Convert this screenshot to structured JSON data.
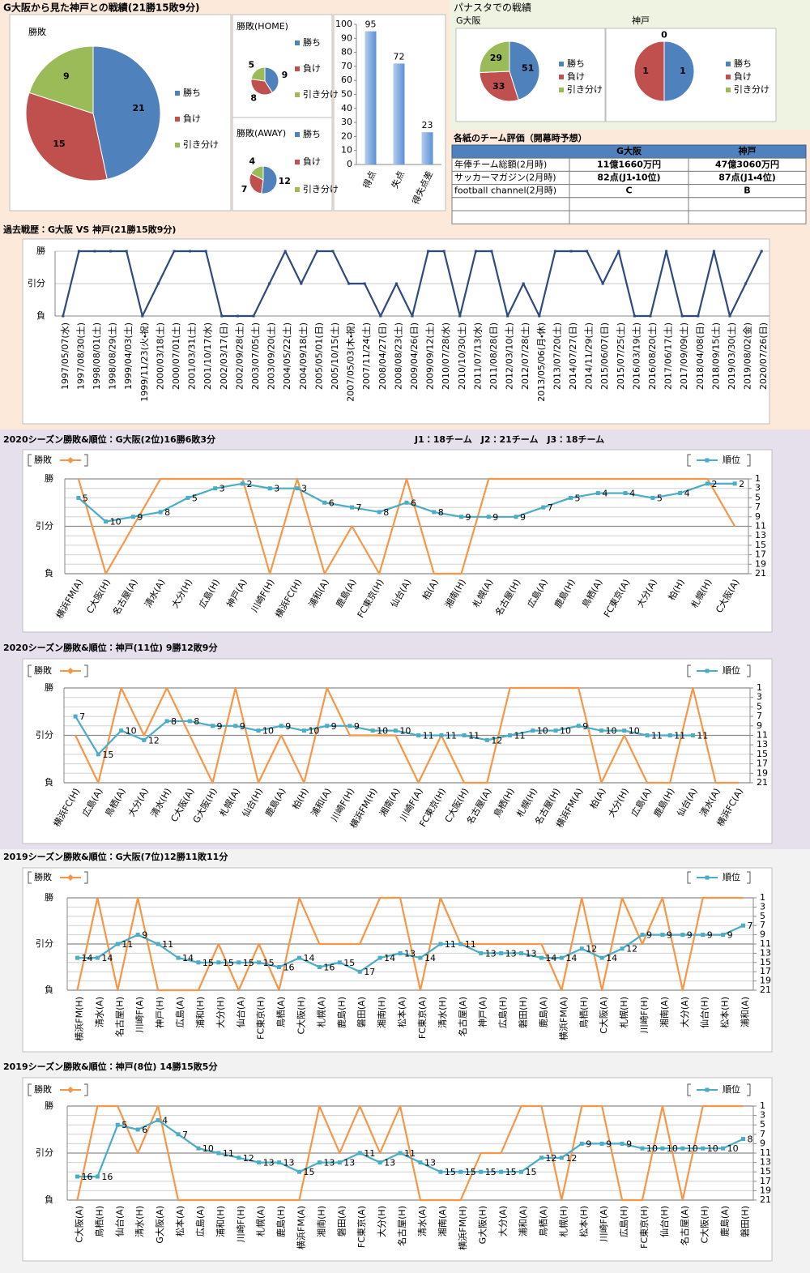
{
  "headers": {
    "summary": "G大阪から見た神戸との戦績(21勝15敗9分)",
    "stadium": "パナスタでの戦績"
  },
  "table": {
    "title": "各紙のチーム評価（開幕時予想）",
    "header": [
      "G大阪",
      "神戸"
    ],
    "rows": [
      {
        "label": "年俸チーム総額(2月時)",
        "cells": [
          "11億1660万円",
          "47億3060万円"
        ]
      },
      {
        "label": "サッカーマガジン(2月時)",
        "cells": [
          "82点(J1・10位)",
          "87点(J1・4位)"
        ]
      },
      {
        "label": "football channel(2月時)",
        "cells": [
          "C",
          "B"
        ]
      }
    ]
  },
  "chart_data": [
    {
      "type": "pie",
      "title": "勝敗",
      "categories": [
        "勝ち",
        "負け",
        "引き分け"
      ],
      "values": [
        21,
        15,
        9
      ],
      "colors": [
        "#4f81bd",
        "#c0504d",
        "#9bbb59"
      ]
    },
    {
      "type": "pie",
      "title": "勝敗(HOME)",
      "categories": [
        "勝ち",
        "負け",
        "引き分け"
      ],
      "values": [
        9,
        8,
        5
      ],
      "colors": [
        "#4f81bd",
        "#c0504d",
        "#9bbb59"
      ]
    },
    {
      "type": "pie",
      "title": "勝敗(AWAY)",
      "categories": [
        "勝ち",
        "負け",
        "引き分け"
      ],
      "values": [
        12,
        7,
        4
      ],
      "colors": [
        "#4f81bd",
        "#c0504d",
        "#9bbb59"
      ]
    },
    {
      "type": "bar",
      "categories": [
        "得点",
        "失点",
        "得失点差"
      ],
      "values": [
        95,
        72,
        23
      ],
      "color": "#5b8fd6",
      "ylim": [
        0,
        100
      ],
      "yticks": [
        0,
        10,
        20,
        30,
        40,
        50,
        60,
        70,
        80,
        90,
        100
      ]
    },
    {
      "type": "pie",
      "title": "G大阪",
      "categories": [
        "勝ち",
        "負け",
        "引き分け"
      ],
      "values": [
        51,
        33,
        29
      ],
      "colors": [
        "#4f81bd",
        "#c0504d",
        "#9bbb59"
      ]
    },
    {
      "type": "pie",
      "title": "神戸",
      "categories": [
        "勝ち",
        "負け",
        "引き分け"
      ],
      "values": [
        1,
        1,
        0
      ],
      "colors": [
        "#4f81bd",
        "#c0504d",
        "#9bbb59"
      ]
    },
    {
      "type": "line",
      "title": "過去戦歴：G大阪 VS 神戸(21勝15敗9分)",
      "categories": [
        "1997/05/07(水)",
        "1997/08/30(土)",
        "1998/08/01(土)",
        "1998/08/29(土)",
        "1999/04/03(土)",
        "1999/11/23(火・祝)",
        "2000/03/18(土)",
        "2000/07/01(土)",
        "2001/03/31(土)",
        "2001/10/17(水)",
        "2002/03/17(日)",
        "2002/09/28(土)",
        "2003/07/05(土)",
        "2003/09/20(土)",
        "2004/05/22(土)",
        "2004/09/18(土)",
        "2005/05/01(日)",
        "2005/10/15(土)",
        "2007/05/03(木・祝)",
        "2007/11/24(土)",
        "2008/04/27(日)",
        "2008/08/23(土)",
        "2009/04/26(日)",
        "2009/09/12(土)",
        "2010/07/28(水)",
        "2010/10/30(土)",
        "2011/07/13(水)",
        "2011/08/28(日)",
        "2012/03/10(土)",
        "2012/07/28(土)",
        "2013/05/06(月・休)",
        "2013/07/20(土)",
        "2014/07/27(日)",
        "2014/11/29(土)",
        "2015/06/07(日)",
        "2015/07/25(土)",
        "2016/03/19(土)",
        "2016/08/20(土)",
        "2017/06/17(土)",
        "2017/09/09(土)",
        "2018/04/08(日)",
        "2018/09/15(土)",
        "2019/03/30(土)",
        "2019/08/02(金)",
        "2020/07/26(日)"
      ],
      "values": [
        0,
        2,
        2,
        2,
        2,
        0,
        1,
        2,
        2,
        2,
        0,
        0,
        0,
        1,
        2,
        1,
        2,
        2,
        1,
        1,
        0,
        1,
        0,
        2,
        2,
        0,
        2,
        2,
        0,
        1,
        0,
        2,
        2,
        2,
        1,
        2,
        0,
        0,
        2,
        0,
        0,
        2,
        0,
        1,
        2
      ],
      "color": "#2f4a7d",
      "ylim": [
        0,
        2
      ],
      "yticks": [
        {
          "value": 0,
          "label": "負"
        },
        {
          "value": 1,
          "label": "引分"
        },
        {
          "value": 2,
          "label": "勝"
        }
      ],
      "grid": true
    },
    {
      "type": "line",
      "title": "2020シーズン勝敗&順位：G大阪(2位)16勝6敗3分",
      "annotation": "J1：18チーム　J2：21チーム　J3：18チーム",
      "categories": [
        "横浜FM(A)",
        "C大阪(H)",
        "名古屋(A)",
        "清水(A)",
        "大分(H)",
        "広島(H)",
        "神戸(A)",
        "川崎F(H)",
        "横浜FC(H)",
        "浦和(A)",
        "鹿島(A)",
        "FC東京(H)",
        "仙台(A)",
        "柏(A)",
        "湘南(H)",
        "札幌(A)",
        "名古屋(H)",
        "広島(A)",
        "鹿島(H)",
        "鳥栖(A)",
        "FC東京(A)",
        "大分(A)",
        "柏(H)",
        "札幌(H)",
        "C大阪(A)"
      ],
      "series": [
        {
          "name": "勝敗",
          "color": "#f79646",
          "values": [
            2,
            0,
            1,
            2,
            2,
            2,
            2,
            0,
            2,
            0,
            1,
            0,
            2,
            0,
            0,
            2,
            2,
            2,
            2,
            2,
            2,
            2,
            2,
            2,
            1
          ]
        },
        {
          "name": "順位",
          "color": "#4bacc6",
          "axis": "y2",
          "values": [
            5,
            10,
            9,
            8,
            5,
            3,
            2,
            3,
            3,
            6,
            7,
            8,
            6,
            8,
            9,
            9,
            9,
            7,
            5,
            4,
            4,
            5,
            4,
            2,
            2
          ]
        }
      ],
      "ylim": [
        0,
        2
      ],
      "yticks": [
        {
          "value": 0,
          "label": "負"
        },
        {
          "value": 1,
          "label": "引分"
        },
        {
          "value": 2,
          "label": "勝"
        }
      ],
      "y2lim": [
        21,
        1
      ],
      "y2ticks": [
        1,
        3,
        5,
        7,
        9,
        11,
        13,
        15,
        17,
        19,
        21
      ],
      "grid": true
    },
    {
      "type": "line",
      "title": "2020シーズン勝敗&順位：神戸(11位) 9勝12敗9分",
      "categories": [
        "横浜FC(H)",
        "広島(A)",
        "鳥栖(A)",
        "大分(A)",
        "清水(H)",
        "C大阪(A)",
        "G大阪(H)",
        "札幌(A)",
        "仙台(H)",
        "鹿島(A)",
        "柏(H)",
        "浦和(A)",
        "川崎F(H)",
        "横浜FM(H)",
        "湘南(A)",
        "川崎F(A)",
        "FC東京(H)",
        "C大阪(H)",
        "名古屋(A)",
        "鳥栖(H)",
        "札幌(H)",
        "名古屋(H)",
        "横浜FM(A)",
        "柏(A)",
        "大分(H)",
        "広島(A)",
        "鹿島(H)",
        "仙台(A)",
        "清水(A)",
        "横浜FC(A)"
      ],
      "series": [
        {
          "name": "勝敗",
          "color": "#f79646",
          "values": [
            1,
            0,
            2,
            1,
            2,
            1,
            0,
            2,
            0,
            1,
            0,
            2,
            1,
            1,
            1,
            0,
            1,
            0,
            0,
            2,
            2,
            2,
            2,
            0,
            1,
            0,
            0,
            2,
            0,
            0
          ]
        },
        {
          "name": "順位",
          "color": "#4bacc6",
          "axis": "y2",
          "values": [
            7,
            15,
            10,
            12,
            8,
            8,
            9,
            9,
            10,
            9,
            10,
            9,
            9,
            10,
            10,
            11,
            11,
            11,
            12,
            11,
            10,
            10,
            9,
            10,
            10,
            11,
            11,
            11,
            null,
            null
          ]
        }
      ],
      "ylim": [
        0,
        2
      ],
      "yticks": [
        {
          "value": 0,
          "label": "負"
        },
        {
          "value": 1,
          "label": "引分"
        },
        {
          "value": 2,
          "label": "勝"
        }
      ],
      "y2lim": [
        21,
        1
      ],
      "y2ticks": [
        1,
        3,
        5,
        7,
        9,
        11,
        13,
        15,
        17,
        19,
        21
      ],
      "grid": true
    },
    {
      "type": "line",
      "title": "2019シーズン勝敗&順位：G大阪(7位)12勝11敗11分",
      "categories": [
        "横浜FM(H)",
        "清水(A)",
        "名古屋(H)",
        "川崎F(A)",
        "神戸(H)",
        "広島(A)",
        "浦和(H)",
        "大分(H)",
        "仙台(A)",
        "FC東京(H)",
        "鳥栖(A)",
        "C大阪(H)",
        "札幌(A)",
        "鹿島(H)",
        "磐田(A)",
        "湘南(H)",
        "松本(A)",
        "FC東京(A)",
        "清水(H)",
        "名古屋(A)",
        "神戸(A)",
        "広島(H)",
        "磐田(H)",
        "鹿島(A)",
        "横浜FM(A)",
        "鳥栖(H)",
        "C大阪(A)",
        "札幌(H)",
        "川崎F(H)",
        "湘南(A)",
        "大分(A)",
        "仙台(H)",
        "松本(H)",
        "浦和(A)"
      ],
      "series": [
        {
          "name": "勝敗",
          "color": "#f79646",
          "values": [
            0,
            2,
            0,
            2,
            0,
            0,
            0,
            1,
            0,
            1,
            0,
            2,
            1,
            1,
            1,
            2,
            2,
            0,
            2,
            1,
            1,
            1,
            1,
            1,
            0,
            2,
            0,
            2,
            1,
            2,
            0,
            2,
            2,
            2
          ]
        },
        {
          "name": "順位",
          "color": "#4bacc6",
          "axis": "y2",
          "values": [
            14,
            14,
            11,
            9,
            11,
            14,
            15,
            15,
            15,
            15,
            16,
            14,
            16,
            15,
            17,
            14,
            13,
            14,
            11,
            11,
            13,
            13,
            13,
            14,
            14,
            12,
            14,
            12,
            9,
            9,
            9,
            9,
            9,
            7
          ]
        }
      ],
      "ylim": [
        0,
        2
      ],
      "yticks": [
        {
          "value": 0,
          "label": "負"
        },
        {
          "value": 1,
          "label": "引分"
        },
        {
          "value": 2,
          "label": "勝"
        }
      ],
      "y2lim": [
        21,
        1
      ],
      "y2ticks": [
        1,
        3,
        5,
        7,
        9,
        11,
        13,
        15,
        17,
        19,
        21
      ],
      "grid": true
    },
    {
      "type": "line",
      "title": "2019シーズン勝敗&順位：神戸(8位) 14勝15敗5分",
      "categories": [
        "C大阪(A)",
        "鳥栖(H)",
        "仙台(A)",
        "清水(H)",
        "G大阪(A)",
        "松本(A)",
        "広島(A)",
        "浦和(H)",
        "川崎F(H)",
        "札幌(A)",
        "鹿島(H)",
        "横浜FM(A)",
        "湘南(H)",
        "磐田(A)",
        "FC東京(A)",
        "大分(H)",
        "名古屋(H)",
        "清水(A)",
        "湘南(A)",
        "横浜FM(H)",
        "G大阪(H)",
        "大分(A)",
        "浦和(A)",
        "鳥栖(A)",
        "札幌(H)",
        "松本(H)",
        "川崎F(A)",
        "広島(H)",
        "FC東京(H)",
        "仙台(H)",
        "名古屋(A)",
        "C大阪(H)",
        "鹿島(A)",
        "磐田(H)"
      ],
      "series": [
        {
          "name": "勝敗",
          "color": "#f79646",
          "values": [
            0,
            2,
            2,
            1,
            2,
            0,
            0,
            0,
            0,
            0,
            0,
            0,
            2,
            1,
            2,
            1,
            2,
            0,
            0,
            0,
            1,
            1,
            2,
            2,
            0,
            2,
            2,
            0,
            0,
            2,
            0,
            2,
            2,
            2
          ]
        },
        {
          "name": "順位",
          "color": "#4bacc6",
          "axis": "y2",
          "values": [
            16,
            16,
            5,
            6,
            4,
            7,
            10,
            11,
            12,
            13,
            13,
            15,
            13,
            13,
            11,
            13,
            11,
            13,
            15,
            15,
            15,
            15,
            15,
            12,
            12,
            9,
            9,
            9,
            10,
            10,
            10,
            10,
            10,
            8
          ]
        }
      ],
      "ylim": [
        0,
        2
      ],
      "yticks": [
        {
          "value": 0,
          "label": "負"
        },
        {
          "value": 1,
          "label": "引分"
        },
        {
          "value": 2,
          "label": "勝"
        }
      ],
      "y2lim": [
        21,
        1
      ],
      "y2ticks": [
        1,
        3,
        5,
        7,
        9,
        11,
        13,
        15,
        17,
        19,
        21
      ],
      "grid": true
    }
  ]
}
